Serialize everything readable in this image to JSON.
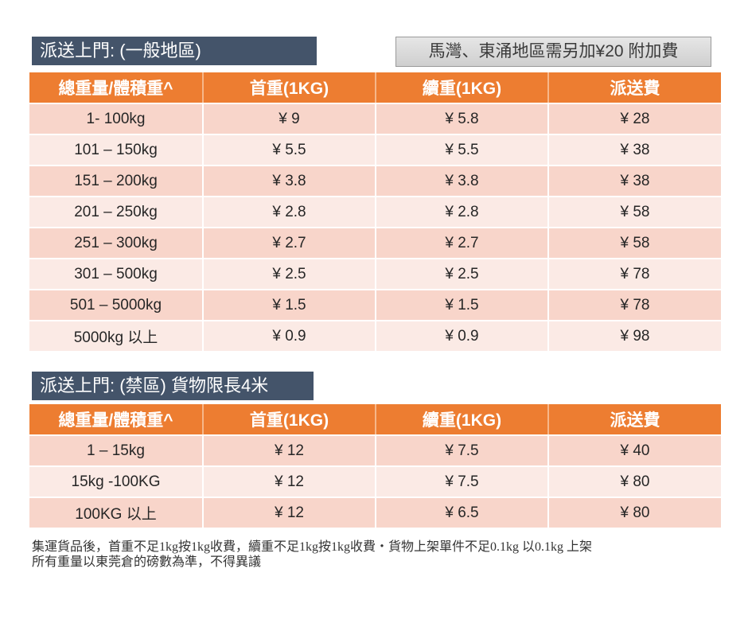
{
  "section1": {
    "title": "派送上門: (一般地區)",
    "notice": "馬灣、東涌地區需另加¥20 附加費",
    "headers": [
      "總重量/體積重^",
      "首重(1KG)",
      "續重(1KG)",
      "派送費"
    ],
    "rows": [
      [
        "1- 100kg",
        "¥ 9",
        "¥ 5.8",
        "¥ 28"
      ],
      [
        "101 – 150kg",
        "¥ 5.5",
        "¥ 5.5",
        "¥ 38"
      ],
      [
        "151 – 200kg",
        "¥ 3.8",
        "¥ 3.8",
        "¥ 38"
      ],
      [
        "201 – 250kg",
        "¥ 2.8",
        "¥ 2.8",
        "¥ 58"
      ],
      [
        "251 – 300kg",
        "¥ 2.7",
        "¥ 2.7",
        "¥ 58"
      ],
      [
        "301 – 500kg",
        "¥ 2.5",
        "¥ 2.5",
        "¥ 78"
      ],
      [
        "501 – 5000kg",
        "¥ 1.5",
        "¥ 1.5",
        "¥ 78"
      ],
      [
        "5000kg 以上",
        "¥ 0.9",
        "¥ 0.9",
        "¥ 98"
      ]
    ]
  },
  "section2": {
    "title": "派送上門: (禁區) 貨物限長4米",
    "headers": [
      "總重量/體積重^",
      "首重(1KG)",
      "續重(1KG)",
      "派送費"
    ],
    "rows": [
      [
        "1 – 15kg",
        "¥ 12",
        "¥ 7.5",
        "¥ 40"
      ],
      [
        "15kg -100KG",
        "¥ 12",
        "¥ 7.5",
        "¥ 80"
      ],
      [
        "100KG 以上",
        "¥ 12",
        "¥ 6.5",
        "¥ 80"
      ]
    ]
  },
  "footer": {
    "line1": "集運貨品後，首重不足1kg按1kg收費，續重不足1kg按1kg收費・貨物上架單件不足0.1kg 以0.1kg 上架",
    "line2": "所有重量以東莞倉的磅數為準，不得異議"
  },
  "colors": {
    "title_bg": "#44546A",
    "header_bg": "#ED7D31",
    "row_odd": "#F8D5CA",
    "row_even": "#FBEAE5",
    "notice_bg": "#DADADA"
  }
}
